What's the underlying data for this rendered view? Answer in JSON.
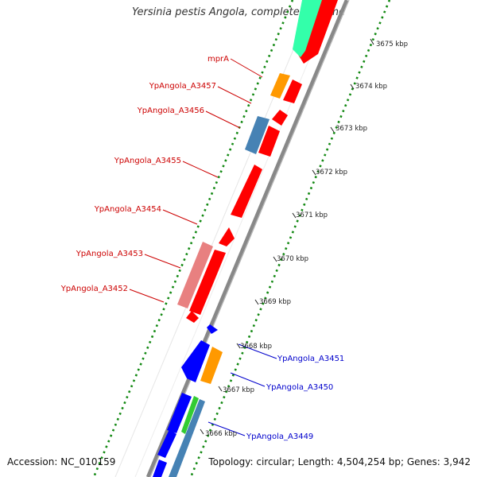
{
  "header": {
    "title": "Yersinia pestis Angola, complete genome"
  },
  "footer": {
    "accession": "Accession: NC_010159",
    "summary": "Topology: circular; Length: 4,504,254 bp; Genes: 3,942"
  },
  "ticks": [
    {
      "kbp": 3675,
      "label": "3675 kbp"
    },
    {
      "kbp": 3674,
      "label": "3674 kbp"
    },
    {
      "kbp": 3673,
      "label": "3673 kbp"
    },
    {
      "kbp": 3672,
      "label": "3672 kbp"
    },
    {
      "kbp": 3671,
      "label": "3671 kbp"
    },
    {
      "kbp": 3670,
      "label": "3670 kbp"
    },
    {
      "kbp": 3669,
      "label": "3669 kbp"
    },
    {
      "kbp": 3668,
      "label": "3668 kbp"
    },
    {
      "kbp": 3667,
      "label": "3667 kbp"
    },
    {
      "kbp": 3666,
      "label": "3666 kbp"
    }
  ],
  "gene_labels": [
    {
      "text": "mprA",
      "strand": "reverse",
      "color": "#cc0000"
    },
    {
      "text": "YpAngola_A3457",
      "strand": "reverse",
      "color": "#cc0000"
    },
    {
      "text": "YpAngola_A3456",
      "strand": "reverse",
      "color": "#cc0000"
    },
    {
      "text": "YpAngola_A3455",
      "strand": "reverse",
      "color": "#cc0000"
    },
    {
      "text": "YpAngola_A3454",
      "strand": "reverse",
      "color": "#cc0000"
    },
    {
      "text": "YpAngola_A3453",
      "strand": "reverse",
      "color": "#cc0000"
    },
    {
      "text": "YpAngola_A3452",
      "strand": "reverse",
      "color": "#cc0000"
    },
    {
      "text": "YpAngola_A3451",
      "strand": "forward",
      "color": "#0000cc"
    },
    {
      "text": "YpAngola_A3450",
      "strand": "forward",
      "color": "#0000cc"
    },
    {
      "text": "YpAngola_A3449",
      "strand": "forward",
      "color": "#0000cc"
    }
  ],
  "colors": {
    "backbone": "#888888",
    "forward_cds": "#0000ff",
    "reverse_cds": "#ff0000",
    "orange_feature": "#ff9900",
    "steelblue_feature": "#4682b4",
    "pink_feature": "#e88080",
    "green_feature": "#33cc33",
    "aqua_feature": "#33ffaa",
    "gc_dots": "#118811"
  }
}
